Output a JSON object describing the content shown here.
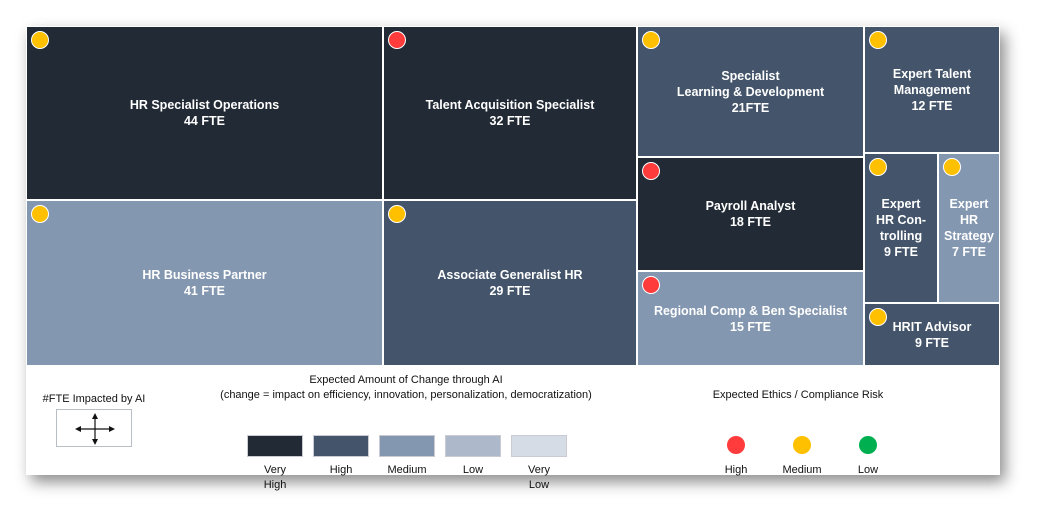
{
  "colors": {
    "very_high": "#222a35",
    "high": "#44546a",
    "medium": "#8497b0",
    "low": "#adb9ca",
    "very_low": "#d6dce5",
    "risk_high": "#ff3b3b",
    "risk_medium": "#ffc000",
    "risk_low": "#00b050"
  },
  "chart_data": {
    "type": "treemap",
    "title": "",
    "size_measure": "#FTE Impacted by AI",
    "items": [
      {
        "name": "HR Specialist Operations",
        "fte": 44,
        "label": "HR Specialist Operations\n44 FTE",
        "change": "very_high",
        "risk": "medium"
      },
      {
        "name": "Talent Acquisition Specialist",
        "fte": 32,
        "label": "Talent Acquisition Specialist\n32 FTE",
        "change": "very_high",
        "risk": "high"
      },
      {
        "name": "Specialist Learning & Development",
        "fte": 21,
        "label": "Specialist\nLearning & Development\n21FTE",
        "change": "high",
        "risk": "medium"
      },
      {
        "name": "Expert Talent Management",
        "fte": 12,
        "label": "Expert Talent\nManagement\n12 FTE",
        "change": "high",
        "risk": "medium"
      },
      {
        "name": "HR Business Partner",
        "fte": 41,
        "label": "HR Business Partner\n41 FTE",
        "change": "medium",
        "risk": "medium"
      },
      {
        "name": "Associate Generalist HR",
        "fte": 29,
        "label": "Associate Generalist HR\n29 FTE",
        "change": "high",
        "risk": "medium"
      },
      {
        "name": "Payroll Analyst",
        "fte": 18,
        "label": "Payroll Analyst\n18 FTE",
        "change": "very_high",
        "risk": "high"
      },
      {
        "name": "Expert HR Controlling",
        "fte": 9,
        "label": "Expert\nHR Con-\ntrolling\n9 FTE",
        "change": "high",
        "risk": "medium"
      },
      {
        "name": "Expert HR Strategy",
        "fte": 7,
        "label": "Expert\nHR\nStrategy\n7 FTE",
        "change": "medium",
        "risk": "medium"
      },
      {
        "name": "Regional Comp & Ben Specialist",
        "fte": 15,
        "label": "Regional Comp & Ben Specialist\n15 FTE",
        "change": "medium",
        "risk": "high"
      },
      {
        "name": "HRIT Advisor",
        "fte": 9,
        "label": "HRIT Advisor\n9 FTE",
        "change": "high",
        "risk": "medium"
      }
    ]
  },
  "legend": {
    "size_title": "#FTE Impacted by AI",
    "change_title": "Expected Amount of Change through AI",
    "change_subtitle": "(change = impact on efficiency, innovation, personalization, democratization)",
    "change_levels": [
      {
        "key": "very_high",
        "label": "Very\nHigh"
      },
      {
        "key": "high",
        "label": "High"
      },
      {
        "key": "medium",
        "label": "Medium"
      },
      {
        "key": "low",
        "label": "Low"
      },
      {
        "key": "very_low",
        "label": "Very\nLow"
      }
    ],
    "risk_title": "Expected Ethics / Compliance Risk",
    "risk_levels": [
      {
        "key": "risk_high",
        "label": "High"
      },
      {
        "key": "risk_medium",
        "label": "Medium"
      },
      {
        "key": "risk_low",
        "label": "Low"
      }
    ]
  }
}
